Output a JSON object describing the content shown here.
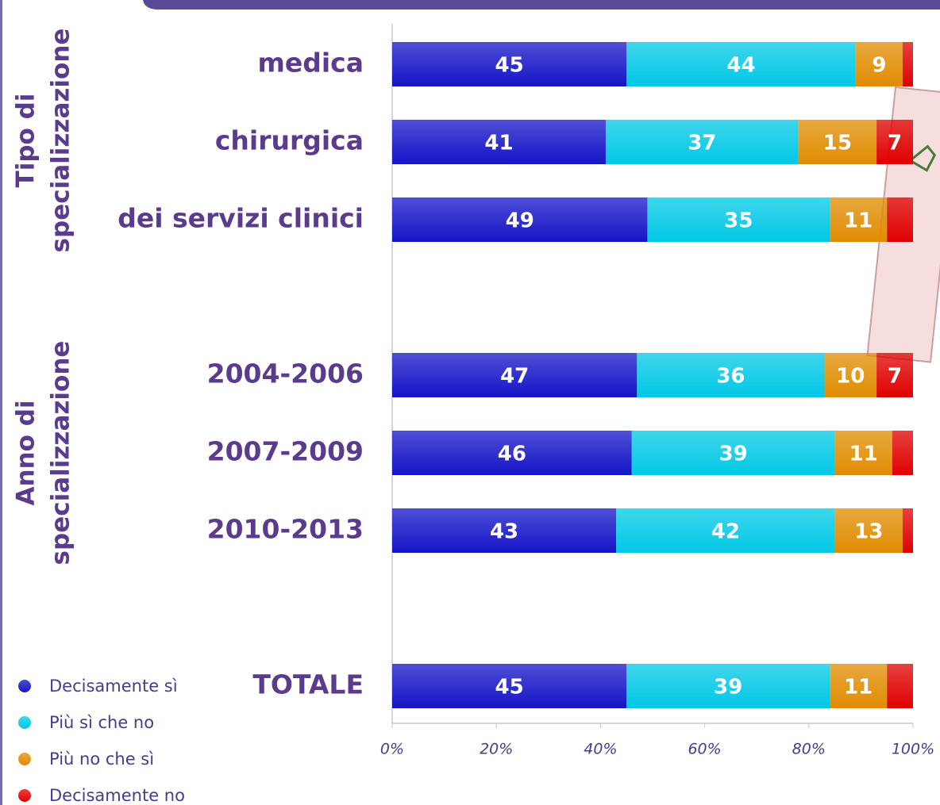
{
  "chart_data": {
    "type": "stacked_bar_horizontal",
    "group_labels": [
      [
        "Tipo di",
        "specializzazione"
      ],
      [
        "Anno di",
        "specializzazione"
      ]
    ],
    "categories": [
      "medica",
      "chirurgica",
      "dei servizi clinici",
      null,
      "2004-2006",
      "2007-2009",
      "2010-2013",
      null,
      "TOTALE"
    ],
    "series": [
      {
        "name": "Decisamente sì",
        "color": "#1414c8",
        "values": [
          45,
          41,
          49,
          null,
          47,
          46,
          43,
          null,
          45
        ]
      },
      {
        "name": "Più sì che no",
        "color": "#00c8e6",
        "values": [
          44,
          37,
          35,
          null,
          36,
          39,
          42,
          null,
          39
        ]
      },
      {
        "name": "Più no che sì",
        "color": "#e08c00",
        "values": [
          9,
          15,
          11,
          null,
          10,
          11,
          13,
          null,
          11
        ]
      },
      {
        "name": "Decisamente no",
        "color": "#e00000",
        "values": [
          2,
          7,
          5,
          null,
          7,
          4,
          2,
          null,
          5
        ],
        "value_labels": [
          null,
          "7",
          null,
          null,
          "7",
          null,
          null,
          null,
          null
        ]
      }
    ],
    "xlim": [
      0,
      100
    ],
    "xticks": [
      {
        "value": 0,
        "label": "0%"
      },
      {
        "value": 20,
        "label": "20%"
      },
      {
        "value": 40,
        "label": "40%"
      },
      {
        "value": 60,
        "label": "60%"
      },
      {
        "value": 80,
        "label": "80%"
      },
      {
        "value": 100,
        "label": "100%"
      }
    ],
    "legend": "bottom-left"
  }
}
